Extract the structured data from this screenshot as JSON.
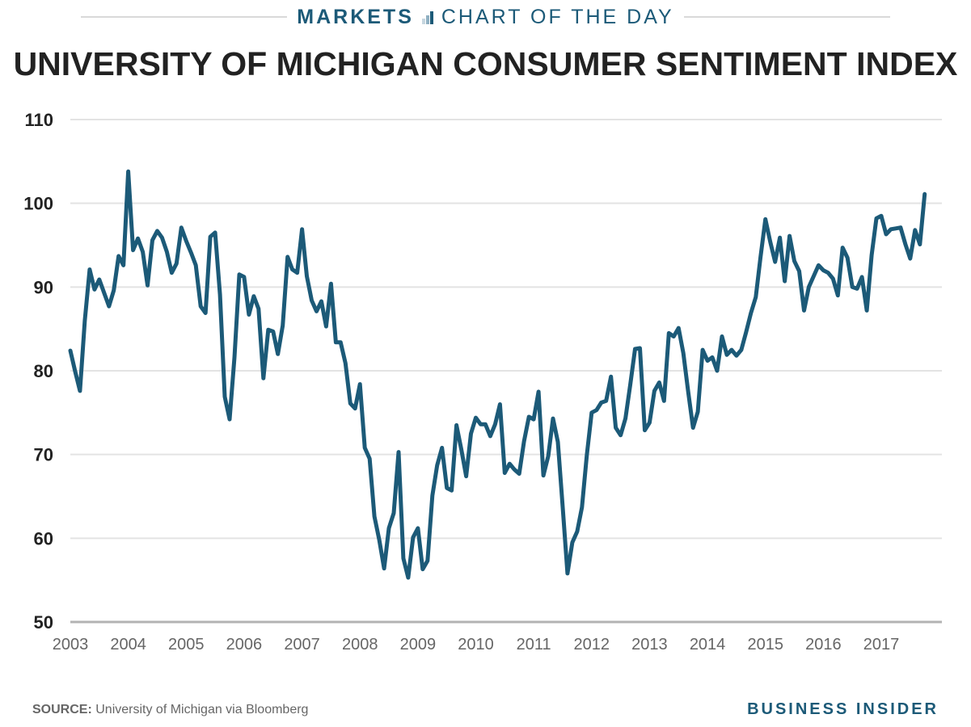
{
  "header": {
    "section": "MARKETS",
    "series_name": "CHART OF THE DAY",
    "icon": "bar-chart-icon",
    "icon_colors": [
      "#c6d6df",
      "#8fb0c2",
      "#1c5a78"
    ]
  },
  "footer": {
    "source_label": "SOURCE:",
    "source_text": "University of Michigan via Bloomberg",
    "brand": "BUSINESS INSIDER"
  },
  "colors": {
    "line": "#1c5a78",
    "grid": "#e3e3e3",
    "baseline": "#b3b3b3",
    "brand": "#1c5a78"
  },
  "chart_data": {
    "type": "line",
    "title": "UNIVERSITY OF MICHIGAN CONSUMER SENTIMENT INDEX",
    "xlabel": "",
    "ylabel": "",
    "ylim": [
      50,
      110
    ],
    "yticks": [
      50,
      60,
      70,
      80,
      90,
      100,
      110
    ],
    "xticks": [
      "2003",
      "2004",
      "2005",
      "2006",
      "2007",
      "2008",
      "2009",
      "2010",
      "2011",
      "2012",
      "2013",
      "2014",
      "2015",
      "2016",
      "2017"
    ],
    "x_start": "2003-01",
    "x_end": "2017-10",
    "frequency": "monthly",
    "grid": true,
    "legend": "none",
    "series": [
      {
        "name": "Consumer Sentiment Index",
        "values": [
          82.4,
          79.9,
          77.6,
          86.0,
          92.1,
          89.7,
          90.9,
          89.3,
          87.7,
          89.6,
          93.7,
          92.6,
          103.8,
          94.4,
          95.8,
          94.2,
          90.2,
          95.6,
          96.7,
          95.9,
          94.2,
          91.7,
          92.8,
          97.1,
          95.5,
          94.1,
          92.6,
          87.7,
          86.9,
          96.0,
          96.5,
          89.1,
          76.9,
          74.2,
          81.6,
          91.5,
          91.2,
          86.7,
          88.9,
          87.4,
          79.1,
          84.9,
          84.7,
          82.0,
          85.4,
          93.6,
          92.1,
          91.7,
          96.9,
          91.3,
          88.4,
          87.1,
          88.3,
          85.3,
          90.4,
          83.4,
          83.4,
          80.9,
          76.1,
          75.5,
          78.4,
          70.8,
          69.5,
          62.6,
          59.8,
          56.4,
          61.2,
          63.0,
          70.3,
          57.6,
          55.3,
          60.1,
          61.2,
          56.3,
          57.3,
          65.1,
          68.7,
          70.8,
          66.0,
          65.7,
          73.5,
          70.6,
          67.4,
          72.5,
          74.4,
          73.6,
          73.6,
          72.2,
          73.6,
          76.0,
          67.8,
          68.9,
          68.2,
          67.7,
          71.6,
          74.5,
          74.2,
          77.5,
          67.5,
          69.8,
          74.3,
          71.5,
          63.7,
          55.8,
          59.5,
          60.8,
          63.7,
          69.9,
          75.0,
          75.3,
          76.2,
          76.4,
          79.3,
          73.2,
          72.3,
          74.3,
          78.3,
          82.6,
          82.7,
          72.9,
          73.8,
          77.6,
          78.6,
          76.4,
          84.5,
          84.1,
          85.1,
          82.1,
          77.5,
          73.2,
          75.1,
          82.5,
          81.2,
          81.6,
          80.0,
          84.1,
          81.9,
          82.5,
          81.8,
          82.5,
          84.6,
          86.9,
          88.8,
          93.6,
          98.1,
          95.4,
          93.0,
          95.9,
          90.7,
          96.1,
          93.1,
          91.9,
          87.2,
          90.0,
          91.3,
          92.6,
          92.0,
          91.7,
          91.0,
          89.0,
          94.7,
          93.5,
          90.0,
          89.8,
          91.2,
          87.2,
          93.8,
          98.2,
          98.5,
          96.3,
          96.9,
          97.0,
          97.1,
          95.1,
          93.4,
          96.8,
          95.1,
          101.1
        ]
      }
    ]
  }
}
